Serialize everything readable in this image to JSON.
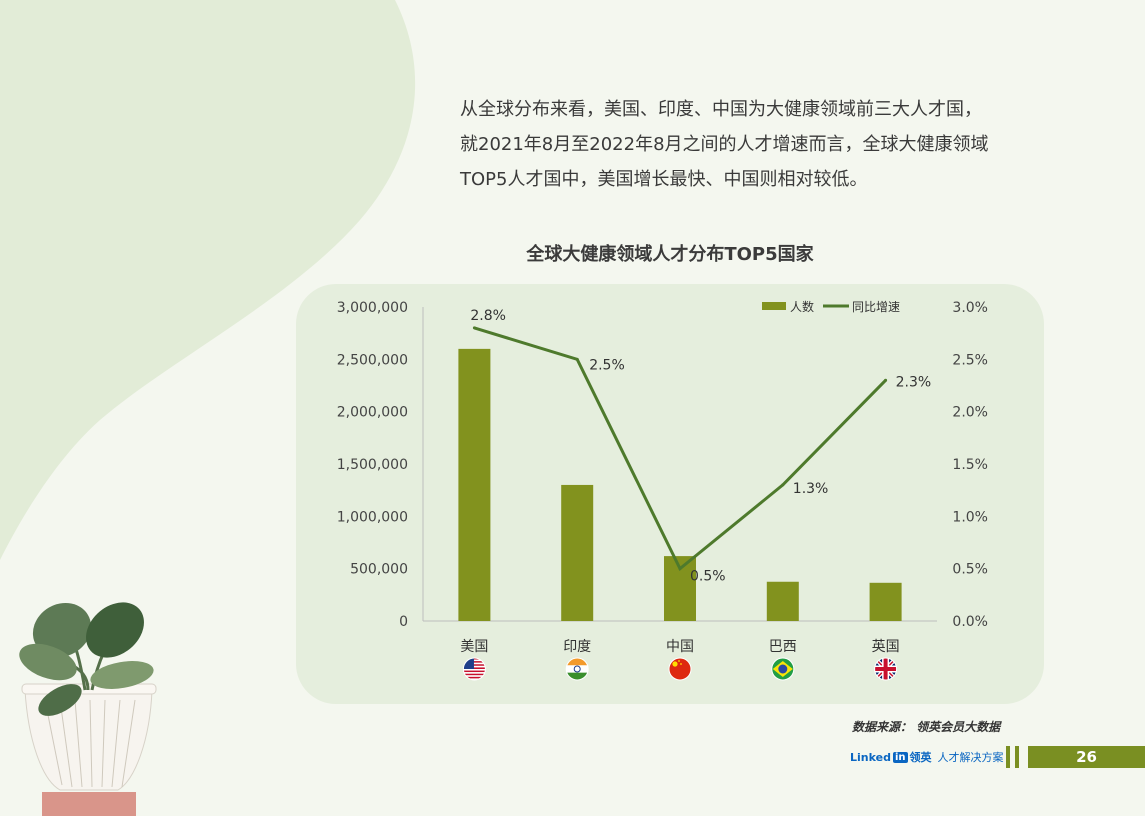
{
  "intro": {
    "line1": "从全球分布来看，美国、印度、中国为大健康领域前三大人才国，",
    "line2": "就2021年8月至2022年8月之间的人才增速而言，全球大健康领域",
    "line3": "TOP5人才国中，美国增长最快、中国则相对较低。"
  },
  "chart_title": "全球大健康领域人才分布TOP5国家",
  "chart_data": {
    "type": "bar",
    "title": "全球大健康领域人才分布TOP5国家",
    "categories": [
      "美国",
      "印度",
      "中国",
      "巴西",
      "英国"
    ],
    "flags": [
      "us-flag-icon",
      "india-flag-icon",
      "china-flag-icon",
      "brazil-flag-icon",
      "uk-flag-icon"
    ],
    "series": [
      {
        "name": "人数",
        "type": "bar",
        "axis": "left",
        "values": [
          2600000,
          1300000,
          620000,
          375000,
          365000
        ]
      },
      {
        "name": "同比增速",
        "type": "line",
        "axis": "right",
        "values": [
          2.8,
          2.5,
          0.5,
          1.3,
          2.3
        ],
        "labels": [
          "2.8%",
          "2.5%",
          "0.5%",
          "1.3%",
          "2.3%"
        ]
      }
    ],
    "y_left": {
      "ylim": [
        0,
        3000000
      ],
      "ticks": [
        "0",
        "500,000",
        "1,000,000",
        "1,500,000",
        "2,000,000",
        "2,500,000",
        "3,000,000"
      ]
    },
    "y_right": {
      "ylim": [
        0,
        3.0
      ],
      "ticks": [
        "0.0%",
        "0.5%",
        "1.0%",
        "1.5%",
        "2.0%",
        "2.5%",
        "3.0%"
      ]
    },
    "legend": "top-right",
    "colors": {
      "bar": "#82921e",
      "line": "#4e7a2c"
    }
  },
  "source": "数据来源： 领英会员大数据",
  "footer": {
    "brand_linked": "Linked",
    "brand_in": "in",
    "brand_cn": "领英",
    "tagline": "人才解决方案",
    "page_number": "26"
  }
}
